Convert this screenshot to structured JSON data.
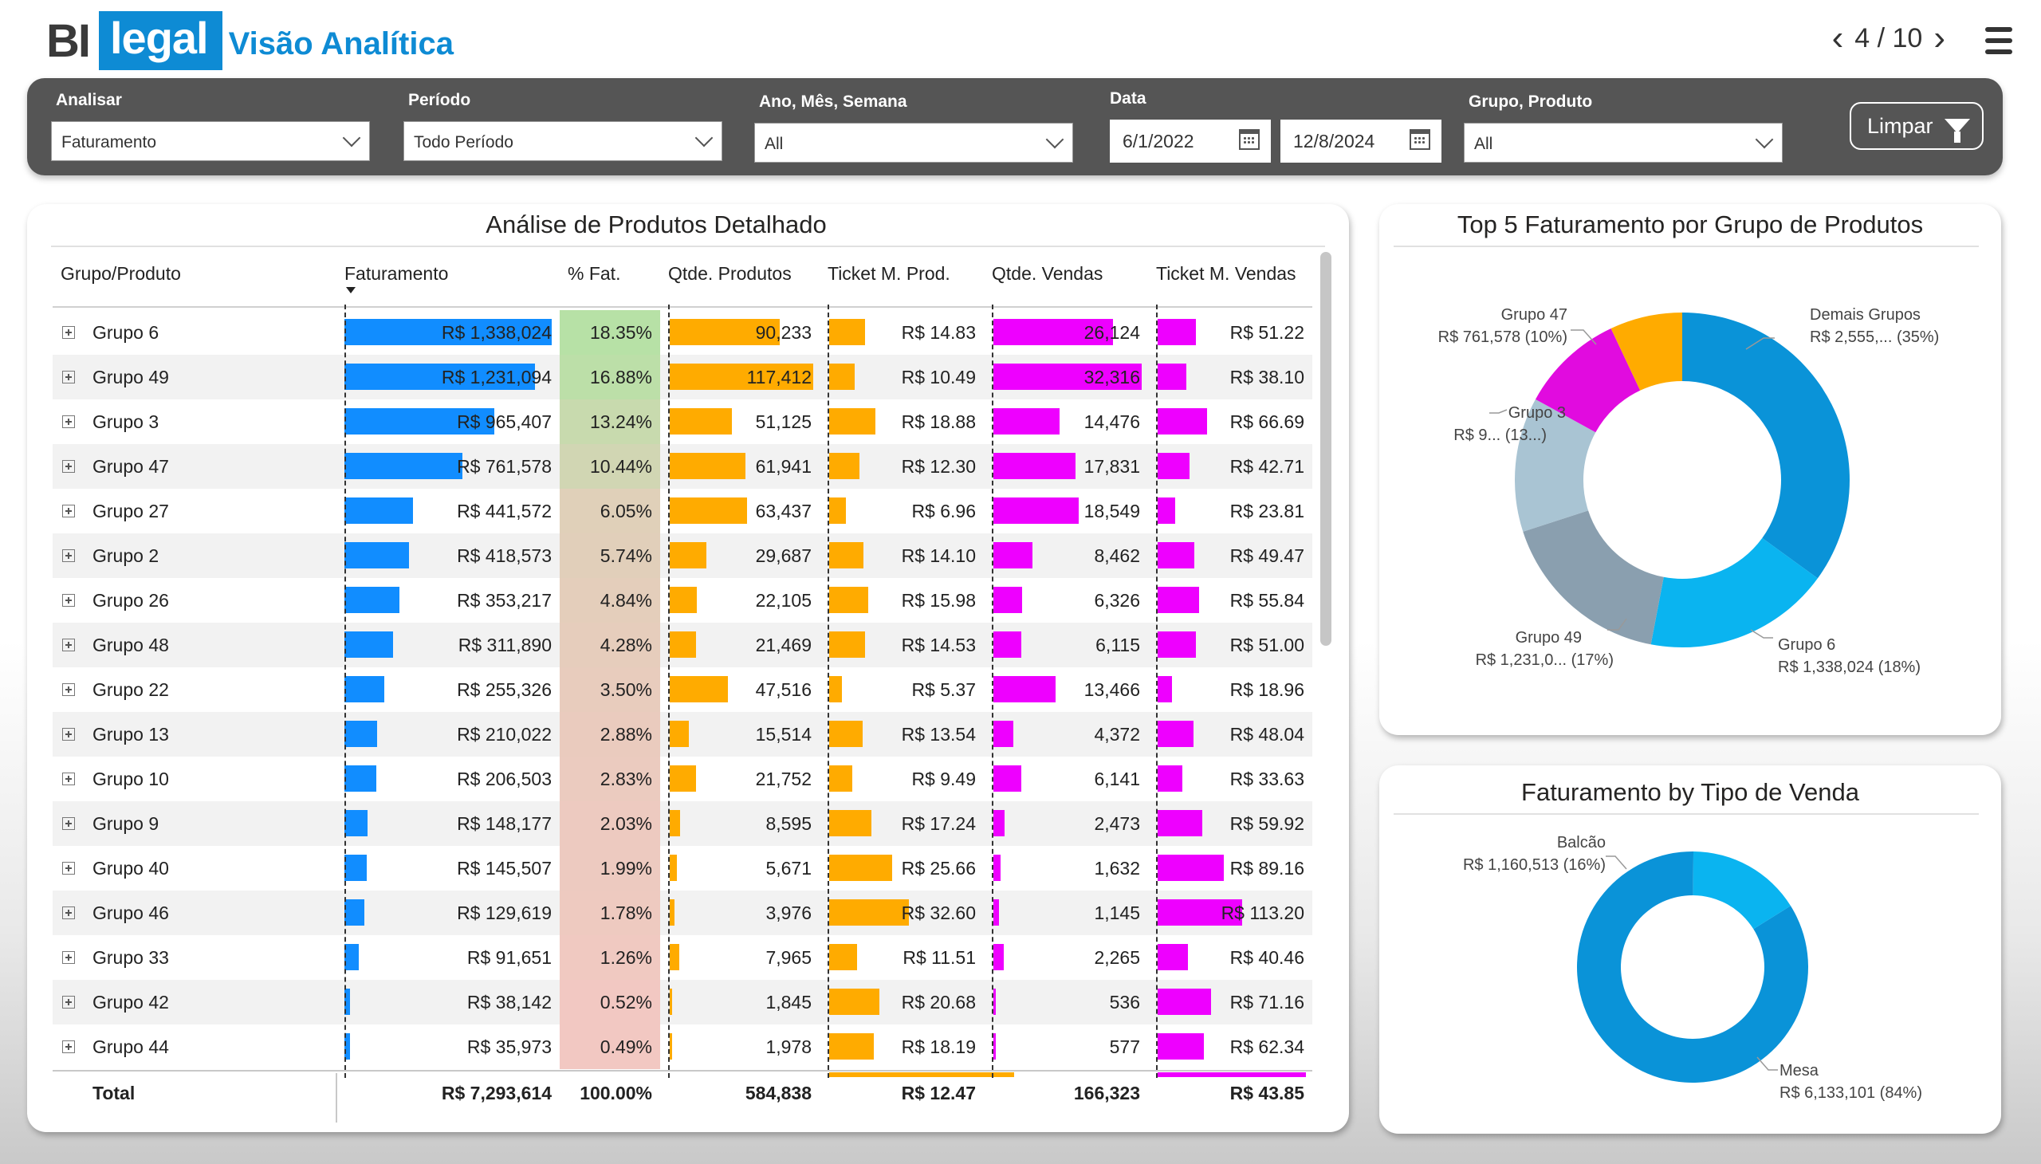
{
  "header": {
    "logo_bi": "BI",
    "logo_legal": "legal",
    "title": "Visão Analítica",
    "page_indicator": "4 / 10"
  },
  "filters": {
    "analisar": {
      "label": "Analisar",
      "value": "Faturamento"
    },
    "periodo": {
      "label": "Período",
      "value": "Todo Período"
    },
    "ano_mes_semana": {
      "label": "Ano, Mês, Semana",
      "value": "All"
    },
    "data": {
      "label": "Data",
      "start": "6/1/2022",
      "end": "12/8/2024"
    },
    "grupo_produto": {
      "label": "Grupo, Produto",
      "value": "All"
    },
    "clear_label": "Limpar"
  },
  "table": {
    "title": "Análise de Produtos Detalhado",
    "columns": [
      "Grupo/Produto",
      "Faturamento",
      "% Fat.",
      "Qtde. Produtos",
      "Ticket M. Prod.",
      "Qtde. Vendas",
      "Ticket M. Vendas"
    ],
    "colors": {
      "faturamento": "#118DFF",
      "qtde_produtos": "#FFAB00",
      "ticket_prod": "#FFAB00",
      "qtde_vendas": "#EE00FF",
      "ticket_vendas": "#EE00FF"
    },
    "rows": [
      {
        "name": "Grupo 6",
        "fat": "R$ 1,338,024",
        "fat_v": 1338024,
        "pct": "18.35%",
        "pct_v": 18.35,
        "qp": "90,233",
        "qp_v": 90233,
        "tmp": "R$ 14.83",
        "tmp_v": 14.83,
        "qv": "26,124",
        "qv_v": 26124,
        "tmv": "R$ 51.22",
        "tmv_v": 51.22
      },
      {
        "name": "Grupo 49",
        "fat": "R$ 1,231,094",
        "fat_v": 1231094,
        "pct": "16.88%",
        "pct_v": 16.88,
        "qp": "117,412",
        "qp_v": 117412,
        "tmp": "R$ 10.49",
        "tmp_v": 10.49,
        "qv": "32,316",
        "qv_v": 32316,
        "tmv": "R$ 38.10",
        "tmv_v": 38.1
      },
      {
        "name": "Grupo 3",
        "fat": "R$ 965,407",
        "fat_v": 965407,
        "pct": "13.24%",
        "pct_v": 13.24,
        "qp": "51,125",
        "qp_v": 51125,
        "tmp": "R$ 18.88",
        "tmp_v": 18.88,
        "qv": "14,476",
        "qv_v": 14476,
        "tmv": "R$ 66.69",
        "tmv_v": 66.69
      },
      {
        "name": "Grupo 47",
        "fat": "R$ 761,578",
        "fat_v": 761578,
        "pct": "10.44%",
        "pct_v": 10.44,
        "qp": "61,941",
        "qp_v": 61941,
        "tmp": "R$ 12.30",
        "tmp_v": 12.3,
        "qv": "17,831",
        "qv_v": 17831,
        "tmv": "R$ 42.71",
        "tmv_v": 42.71
      },
      {
        "name": "Grupo 27",
        "fat": "R$ 441,572",
        "fat_v": 441572,
        "pct": "6.05%",
        "pct_v": 6.05,
        "qp": "63,437",
        "qp_v": 63437,
        "tmp": "R$ 6.96",
        "tmp_v": 6.96,
        "qv": "18,549",
        "qv_v": 18549,
        "tmv": "R$ 23.81",
        "tmv_v": 23.81
      },
      {
        "name": "Grupo 2",
        "fat": "R$ 418,573",
        "fat_v": 418573,
        "pct": "5.74%",
        "pct_v": 5.74,
        "qp": "29,687",
        "qp_v": 29687,
        "tmp": "R$ 14.10",
        "tmp_v": 14.1,
        "qv": "8,462",
        "qv_v": 8462,
        "tmv": "R$ 49.47",
        "tmv_v": 49.47
      },
      {
        "name": "Grupo 26",
        "fat": "R$ 353,217",
        "fat_v": 353217,
        "pct": "4.84%",
        "pct_v": 4.84,
        "qp": "22,105",
        "qp_v": 22105,
        "tmp": "R$ 15.98",
        "tmp_v": 15.98,
        "qv": "6,326",
        "qv_v": 6326,
        "tmv": "R$ 55.84",
        "tmv_v": 55.84
      },
      {
        "name": "Grupo 48",
        "fat": "R$ 311,890",
        "fat_v": 311890,
        "pct": "4.28%",
        "pct_v": 4.28,
        "qp": "21,469",
        "qp_v": 21469,
        "tmp": "R$ 14.53",
        "tmp_v": 14.53,
        "qv": "6,115",
        "qv_v": 6115,
        "tmv": "R$ 51.00",
        "tmv_v": 51.0
      },
      {
        "name": "Grupo 22",
        "fat": "R$ 255,326",
        "fat_v": 255326,
        "pct": "3.50%",
        "pct_v": 3.5,
        "qp": "47,516",
        "qp_v": 47516,
        "tmp": "R$ 5.37",
        "tmp_v": 5.37,
        "qv": "13,466",
        "qv_v": 13466,
        "tmv": "R$ 18.96",
        "tmv_v": 18.96
      },
      {
        "name": "Grupo 13",
        "fat": "R$ 210,022",
        "fat_v": 210022,
        "pct": "2.88%",
        "pct_v": 2.88,
        "qp": "15,514",
        "qp_v": 15514,
        "tmp": "R$ 13.54",
        "tmp_v": 13.54,
        "qv": "4,372",
        "qv_v": 4372,
        "tmv": "R$ 48.04",
        "tmv_v": 48.04
      },
      {
        "name": "Grupo 10",
        "fat": "R$ 206,503",
        "fat_v": 206503,
        "pct": "2.83%",
        "pct_v": 2.83,
        "qp": "21,752",
        "qp_v": 21752,
        "tmp": "R$ 9.49",
        "tmp_v": 9.49,
        "qv": "6,141",
        "qv_v": 6141,
        "tmv": "R$ 33.63",
        "tmv_v": 33.63
      },
      {
        "name": "Grupo 9",
        "fat": "R$ 148,177",
        "fat_v": 148177,
        "pct": "2.03%",
        "pct_v": 2.03,
        "qp": "8,595",
        "qp_v": 8595,
        "tmp": "R$ 17.24",
        "tmp_v": 17.24,
        "qv": "2,473",
        "qv_v": 2473,
        "tmv": "R$ 59.92",
        "tmv_v": 59.92
      },
      {
        "name": "Grupo 40",
        "fat": "R$ 145,507",
        "fat_v": 145507,
        "pct": "1.99%",
        "pct_v": 1.99,
        "qp": "5,671",
        "qp_v": 5671,
        "tmp": "R$ 25.66",
        "tmp_v": 25.66,
        "qv": "1,632",
        "qv_v": 1632,
        "tmv": "R$ 89.16",
        "tmv_v": 89.16
      },
      {
        "name": "Grupo 46",
        "fat": "R$ 129,619",
        "fat_v": 129619,
        "pct": "1.78%",
        "pct_v": 1.78,
        "qp": "3,976",
        "qp_v": 3976,
        "tmp": "R$ 32.60",
        "tmp_v": 32.6,
        "qv": "1,145",
        "qv_v": 1145,
        "tmv": "R$ 113.20",
        "tmv_v": 113.2
      },
      {
        "name": "Grupo 33",
        "fat": "R$ 91,651",
        "fat_v": 91651,
        "pct": "1.26%",
        "pct_v": 1.26,
        "qp": "7,965",
        "qp_v": 7965,
        "tmp": "R$ 11.51",
        "tmp_v": 11.51,
        "qv": "2,265",
        "qv_v": 2265,
        "tmv": "R$ 40.46",
        "tmv_v": 40.46
      },
      {
        "name": "Grupo 42",
        "fat": "R$ 38,142",
        "fat_v": 38142,
        "pct": "0.52%",
        "pct_v": 0.52,
        "qp": "1,845",
        "qp_v": 1845,
        "tmp": "R$ 20.68",
        "tmp_v": 20.68,
        "qv": "536",
        "qv_v": 536,
        "tmv": "R$ 71.16",
        "tmv_v": 71.16
      },
      {
        "name": "Grupo 44",
        "fat": "R$ 35,973",
        "fat_v": 35973,
        "pct": "0.49%",
        "pct_v": 0.49,
        "qp": "1,978",
        "qp_v": 1978,
        "tmp": "R$ 18.19",
        "tmp_v": 18.19,
        "qv": "577",
        "qv_v": 577,
        "tmv": "R$ 62.34",
        "tmv_v": 62.34
      }
    ],
    "total": {
      "label": "Total",
      "fat": "R$ 7,293,614",
      "pct": "100.00%",
      "qp": "584,838",
      "tmp": "R$ 12.47",
      "qv": "166,323",
      "tmv": "R$ 43.85"
    }
  },
  "chart_data": [
    {
      "type": "pie",
      "variant": "donut",
      "title": "Top 5 Faturamento por Grupo de Produtos",
      "slices": [
        {
          "label": "Demais Grupos",
          "text": "R$ 2,555,... (35%)",
          "value": 35,
          "color": "#0A93D8"
        },
        {
          "label": "Grupo 6",
          "text": "R$ 1,338,024 (18%)",
          "value": 18,
          "color": "#0AB4F0"
        },
        {
          "label": "Grupo 49",
          "text": "R$ 1,231,0... (17%)",
          "value": 17,
          "color": "#8A9FAF"
        },
        {
          "label": "Grupo 3",
          "text": "R$ 9... (13...)",
          "value": 13,
          "color": "#A9C4D3"
        },
        {
          "label": "Grupo 47",
          "text": "R$ 761,578 (10%)",
          "value": 10,
          "color": "#E10BDF"
        },
        {
          "label": "",
          "text": "",
          "value": 7,
          "color": "#FFAB00"
        }
      ]
    },
    {
      "type": "pie",
      "variant": "donut",
      "title": "Faturamento by Tipo de Venda",
      "slices": [
        {
          "label": "Mesa",
          "text": "R$ 6,133,101 (84%)",
          "value": 84,
          "color": "#0A93D8"
        },
        {
          "label": "Balcão",
          "text": "R$ 1,160,513 (16%)",
          "value": 16,
          "color": "#0AB4F0"
        }
      ]
    }
  ]
}
